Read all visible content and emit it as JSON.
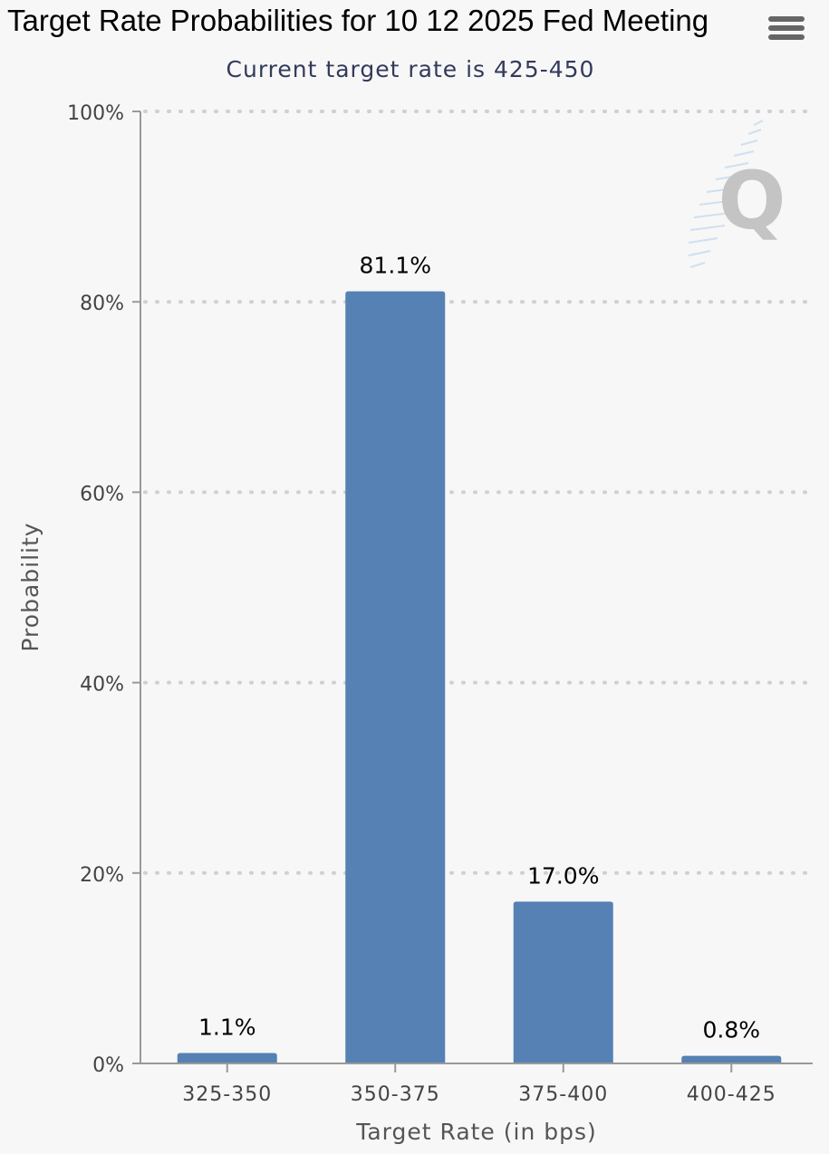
{
  "header": {
    "title": "Target Rate Probabilities for 10 12 2025 Fed Meeting",
    "menu_icon": "hamburger-menu-icon"
  },
  "chart_data": {
    "type": "bar",
    "title": "Target Rate Probabilities for 10 12 2025 Fed Meeting",
    "subtitle": "Current target rate is 425-450",
    "categories": [
      "325-350",
      "350-375",
      "375-400",
      "400-425"
    ],
    "values": [
      1.1,
      81.1,
      17.0,
      0.8
    ],
    "data_labels": [
      "1.1%",
      "81.1%",
      "17.0%",
      "0.8%"
    ],
    "xlabel": "Target Rate (in bps)",
    "ylabel": "Probability",
    "ylim": [
      0,
      100
    ],
    "yticks": [
      "0%",
      "20%",
      "40%",
      "60%",
      "80%",
      "100%"
    ],
    "grid": true,
    "bar_color": "#5581b4",
    "watermark_icon": "quikstrike-q-logo-icon"
  }
}
